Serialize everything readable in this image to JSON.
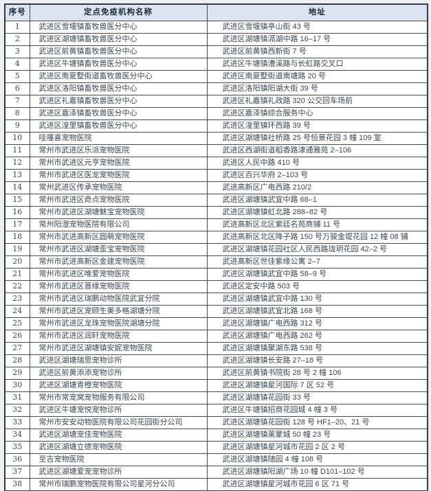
{
  "page": {
    "background": "#edeff5",
    "description": "定点免疫机构名单表格"
  },
  "table": {
    "header_bg": "#dce4f2",
    "border_color": "#4a4a4a",
    "text_color": "#3a4654",
    "columns": [
      {
        "label": "序号"
      },
      {
        "label": "定点免疫机构名称"
      },
      {
        "label": "地址"
      }
    ],
    "rows": [
      {
        "num": "1",
        "name": "武进区雪堰镇畜牧兽医分中心",
        "address": "武进区雪堰镇亭山街 43 号"
      },
      {
        "num": "2",
        "name": "武进区湖塘镇畜牧兽医分中心",
        "address": "武进区湖塘镇滆湖中路 16–17 号"
      },
      {
        "num": "3",
        "name": "武进区前黄镇畜牧兽医分中心",
        "address": "武进区前黄镇西新街 7 号"
      },
      {
        "num": "4",
        "name": "武进区牛塘镇畜牧兽医分中心",
        "address": "武进区牛塘镇漕溪路与长虹路交叉口"
      },
      {
        "num": "5",
        "name": "武进区南夏墅街道畜牧兽医分中心",
        "address": "武进区南夏墅街道南塘路 20 号"
      },
      {
        "num": "6",
        "name": "武进区洛阳镇畜牧兽医分中心",
        "address": "武进区洛阳镇阳湖大街 39 号"
      },
      {
        "num": "7",
        "name": "武进区礼嘉镇畜牧兽医分中心",
        "address": "武进区礼嘉镇礼政路 320 公交回车场前"
      },
      {
        "num": "8",
        "name": "武进区嘉泽镇畜牧兽医分中心",
        "address": "武进区嘉泽镇综合服务中心"
      },
      {
        "num": "9",
        "name": "武进区湟里镇畜牧兽医分中心",
        "address": "武进区湟里镇环西路 39 号"
      },
      {
        "num": "10",
        "name": "哇噻喜宠物医院",
        "address": "武进区湖塘镇社桥路 25 号恒景花园 3 幢 109 室"
      },
      {
        "num": "11",
        "name": "常州市武进区乐派宠物医院",
        "address": "武进区西湖街道稻香路津通雅苑 2–106"
      },
      {
        "num": "12",
        "name": "常州市武进区元亨宠物医院",
        "address": "武进区人民中路 410 号"
      },
      {
        "num": "13",
        "name": "常州市武进区医龙宠物医院",
        "address": "武进区百兴华府 2–103 号"
      },
      {
        "num": "14",
        "name": "常州武进区传承宠物医院",
        "address": "武进高新区广电西路 210/2"
      },
      {
        "num": "15",
        "name": "常州市武进区奇点宠物医院",
        "address": "武进区湖塘镇武宜中路 68–1"
      },
      {
        "num": "16",
        "name": "常州市武进区湖塘魅宝宠物医院",
        "address": "武进区湖塘镇虹北路 288–82 号"
      },
      {
        "num": "17",
        "name": "常州阳澄宠物医院有限公司",
        "address": "武进高新区北区紫廷名苑商铺 11 号"
      },
      {
        "num": "18",
        "name": "常州市武进高新区圆萌宠物医院",
        "address": "武进高新区北区降子路 150 号万骏金堤花园 12 幢 08 铺"
      },
      {
        "num": "19",
        "name": "常州市武进区湖塘歪宝宠物医院",
        "address": "武进区湖塘镇花园社区人民西路珑玥花园 42–2 号"
      },
      {
        "num": "20",
        "name": "常州市武进高新区金建宠物医院",
        "address": "武进高新区世佳紫缘公寓 2–7"
      },
      {
        "num": "21",
        "name": "常州市武进区唯爱宠物医院",
        "address": "武进区湖塘镇武宜中路 58–9 号"
      },
      {
        "num": "22",
        "name": "常州市武进区晋缘宠物医院",
        "address": "武进区定安中路 503 号"
      },
      {
        "num": "23",
        "name": "常州市武进区瑞鹏动物医院武宜分院",
        "address": "武进区湖塘镇武宜中路 130 号"
      },
      {
        "num": "24",
        "name": "常州市武进区宠颐生美多格湖塘分院",
        "address": "武进区湖塘镇武宜北路 168 号"
      },
      {
        "num": "25",
        "name": "常州市武进区龙珠宠物医院湖塘分院",
        "address": "武进区湖塘镇广电西路 312 号"
      },
      {
        "num": "26",
        "name": "常州市武进区润轩宠物医院",
        "address": "武进区湖塘镇广电西路 262 号"
      },
      {
        "num": "27",
        "name": "常州市武进区湖塘镇安妮宠物医院",
        "address": "武进区湖塘镇聚湖东路 538 号"
      },
      {
        "num": "28",
        "name": "武进区湖塘瑞思宠物诊所",
        "address": "武进区湖塘镇长安路 27–18 号"
      },
      {
        "num": "29",
        "name": "武进区前黄添添宠物诊所",
        "address": "武进区前黄镇书院街 28 号 2 幢 106"
      },
      {
        "num": "30",
        "name": "武进区湖塘青橙宠物医院",
        "address": "武进区湖塘镇星河国际 7 区 52 号"
      },
      {
        "num": "31",
        "name": "常州市常宠窝宠物服务有限公司",
        "address": "武进区湖塘镇花园街 33 号"
      },
      {
        "num": "32",
        "name": "武进区牛塘宠悦宠物诊所",
        "address": "武进区牛塘镇招商花园城 4 幢 3 号"
      },
      {
        "num": "33",
        "name": "常州市安安动物医院有限公司花园街分公司",
        "address": "武进区湖塘镇花园街 128 号 HF1–20、21 号"
      },
      {
        "num": "34",
        "name": "武进区湖塘宠佳宠物医院",
        "address": "武进区湖塘镇莱蒙城 50 幢 23 号"
      },
      {
        "num": "35",
        "name": "武进区湖塘立德宠物医院",
        "address": "武进区湖塘镇星河城市花园 2 区 2 号"
      },
      {
        "num": "36",
        "name": "至吉宠物医院",
        "address": "武进区湖塘镇随园 4 幢 108 号"
      },
      {
        "num": "37",
        "name": "武进区湖塘爱宠宠物诊所",
        "address": "武进区湖塘镇阳湖广场 10 幢 D101–102 号"
      },
      {
        "num": "38",
        "name": "常州市瑞鹏宠物医院有限公司星河分公司",
        "address": "武进区湖塘镇星河城市花园 6 区 71 号"
      }
    ]
  }
}
